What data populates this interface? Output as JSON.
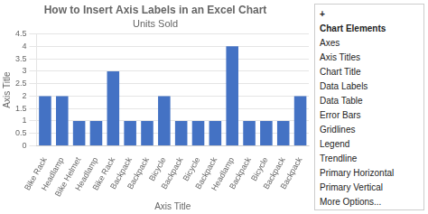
{
  "chart_data": {
    "type": "bar",
    "title": "How to Insert Axis Labels in an Excel Chart",
    "subtitle": "Units Sold",
    "xlabel": "Axis Title",
    "ylabel": "Axis Title",
    "categories": [
      "Bike Rack",
      "Headlamp",
      "Bike Helmet",
      "Headlamp",
      "Bike Rack",
      "Backpack",
      "Backpack",
      "Bicycle",
      "Backpack",
      "Bicycle",
      "Backpack",
      "Headlamp",
      "Backpack",
      "Bicycle",
      "Backpack",
      "Backpack"
    ],
    "values": [
      2,
      2,
      1,
      1,
      3,
      1,
      1,
      2,
      1,
      1,
      1,
      4,
      1,
      1,
      1,
      2
    ],
    "color": "#4472C4",
    "ylim": [
      0,
      4.5
    ],
    "yticks": [
      0,
      0.5,
      1,
      1.5,
      2,
      2.5,
      3,
      3.5,
      4,
      4.5
    ],
    "grid": true,
    "annotations": [
      "+",
      "Chart Elements",
      "Axes",
      "Axis Titles",
      "Chart Title",
      "Data Labels",
      "Data Table",
      "Error Bars",
      "Gridlines",
      "Legend",
      "Trendline",
      "Primary Horizontal",
      "Primary Vertical",
      "More Options..."
    ]
  }
}
